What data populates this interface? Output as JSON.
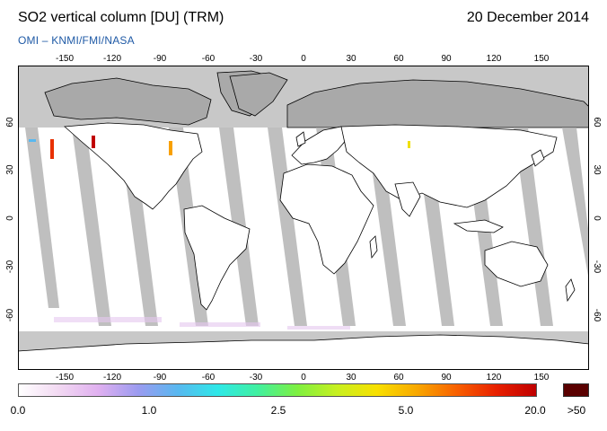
{
  "header": {
    "title": "SO2 vertical column [DU] (TRM)",
    "date": "20 December 2014",
    "credit": "OMI  –  KNMI/FMI/NASA"
  },
  "map": {
    "lon_ticks": [
      "-150",
      "-120",
      "-90",
      "-60",
      "-30",
      "0",
      "30",
      "60",
      "90",
      "120",
      "150"
    ],
    "lat_ticks": [
      "60",
      "30",
      "0",
      "-30",
      "-60"
    ],
    "colors": {
      "ocean": "#ffffff",
      "no_data": "#c8c8c8",
      "swath_gap": "#b4b4b4",
      "land_night": "#a8a8a8",
      "coast": "#000000"
    }
  },
  "colorbar": {
    "labels": [
      "0.0",
      "1.0",
      "2.5",
      "5.0",
      "20.0"
    ],
    "overflow_label": ">50",
    "colors": [
      "#ffffff",
      "#f2d9f2",
      "#e0b0f0",
      "#9b9bf0",
      "#58b8f0",
      "#2ee8e8",
      "#40f0a0",
      "#7ef040",
      "#c8f020",
      "#f8e000",
      "#f8a800",
      "#f86000",
      "#e82000",
      "#c00000"
    ],
    "overflow_color": "#5a0000"
  }
}
